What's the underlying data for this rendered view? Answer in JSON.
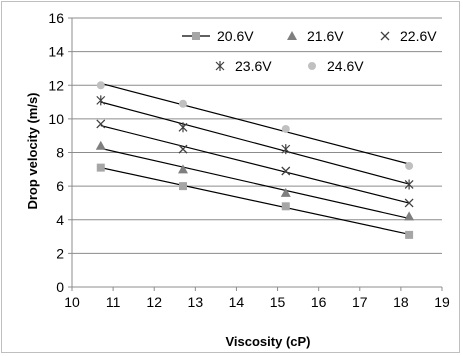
{
  "chart_data": {
    "type": "scatter",
    "xlabel": "Viscosity (cP)",
    "ylabel": "Drop velocity (m/s)",
    "xlim": [
      10,
      19
    ],
    "ylim": [
      0,
      16
    ],
    "x_ticks": [
      10,
      11,
      12,
      13,
      14,
      15,
      16,
      17,
      18,
      19
    ],
    "y_ticks": [
      0,
      2,
      4,
      6,
      8,
      10,
      12,
      14,
      16
    ],
    "grid": "horizontal",
    "legend_position": "top-right",
    "trendlines": "linear",
    "series": [
      {
        "name": "20.6V",
        "marker": "square",
        "color": "#a6a6a6",
        "x": [
          10.7,
          12.7,
          15.2,
          18.2
        ],
        "y": [
          7.1,
          6.0,
          4.8,
          3.1
        ]
      },
      {
        "name": "21.6V",
        "marker": "triangle",
        "color": "#7f7f7f",
        "x": [
          10.7,
          12.7,
          15.2,
          18.2
        ],
        "y": [
          8.4,
          7.0,
          5.6,
          4.2
        ]
      },
      {
        "name": "22.6V",
        "marker": "x",
        "color": "#404040",
        "x": [
          10.7,
          12.7,
          15.2,
          18.2
        ],
        "y": [
          9.7,
          8.2,
          6.9,
          5.0
        ]
      },
      {
        "name": "23.6V",
        "marker": "star",
        "color": "#404040",
        "x": [
          10.7,
          12.7,
          15.2,
          18.2
        ],
        "y": [
          11.1,
          9.5,
          8.2,
          6.1
        ]
      },
      {
        "name": "24.6V",
        "marker": "circle",
        "color": "#c0c0c0",
        "x": [
          10.7,
          12.7,
          15.2,
          18.2
        ],
        "y": [
          12.0,
          10.9,
          9.4,
          7.2
        ]
      }
    ]
  }
}
